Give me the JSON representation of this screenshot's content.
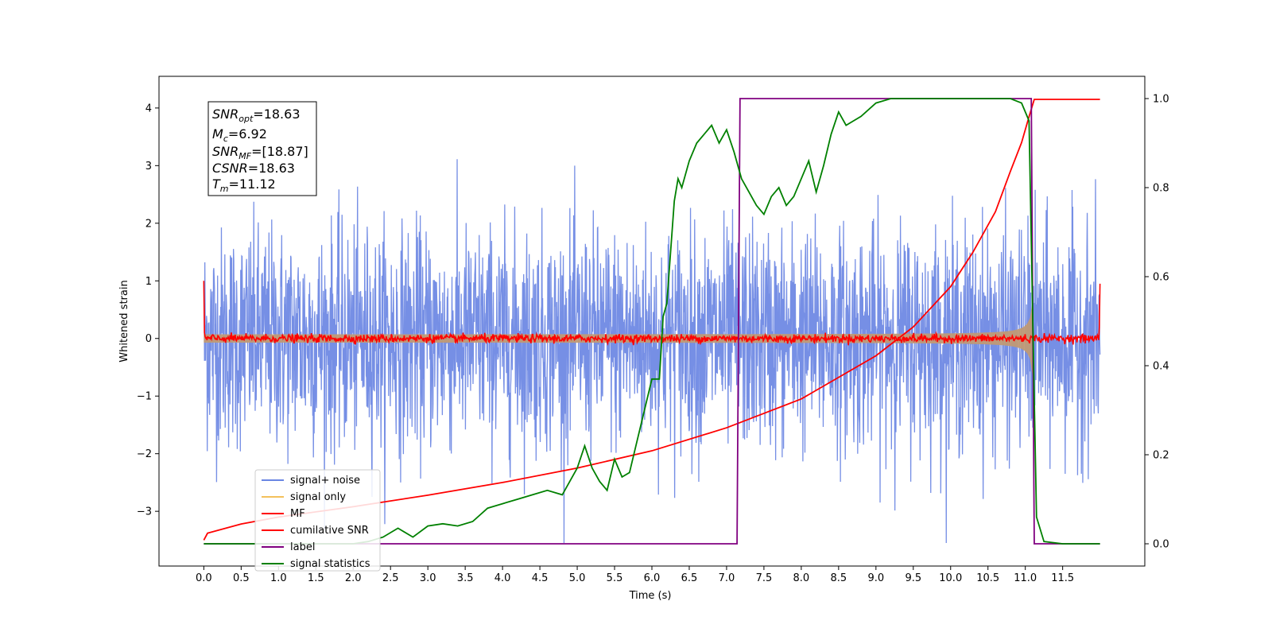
{
  "chart_data": {
    "type": "line",
    "xlabel": "Time (s)",
    "ylabel": "Whitened strain",
    "xlim": [
      -0.6,
      12.6
    ],
    "ylim": [
      -3.95,
      4.55
    ],
    "y2lim": [
      -0.05,
      1.05
    ],
    "x_ticks": [
      "0.0",
      "0.5",
      "1.0",
      "1.5",
      "2.0",
      "2.5",
      "3.0",
      "3.5",
      "4.0",
      "4.5",
      "5.0",
      "5.5",
      "6.0",
      "6.5",
      "7.0",
      "7.5",
      "8.0",
      "8.5",
      "9.0",
      "9.5",
      "10.0",
      "10.5",
      "11.0",
      "11.5"
    ],
    "y_ticks": [
      "−3",
      "−2",
      "−1",
      "0",
      "1",
      "2",
      "3",
      "4"
    ],
    "y2_ticks": [
      "0.0",
      "0.2",
      "0.4",
      "0.6",
      "0.8",
      "1.0"
    ],
    "legend_position": "lower left",
    "legend": [
      "signal+ noise",
      "signal only",
      "MF",
      "cumilative SNR",
      "label",
      "signal statistics"
    ],
    "colors": {
      "signal_noise": "#6a86e3",
      "signal_only": "#f4c15c",
      "signal_overlap": "#c09a75",
      "mf": "#ff0000",
      "cumulative_snr": "#ff0000",
      "label": "#800080",
      "signal_statistics": "#008000"
    },
    "annotation": {
      "snr_opt": {
        "name": "SNR",
        "sub": "opt",
        "value": "=18.63"
      },
      "mc": {
        "name": "M",
        "sub": "c",
        "value": "=6.92"
      },
      "snr_mf": {
        "name": "SNR",
        "sub": "MF",
        "value": "=[18.87]"
      },
      "csnr": {
        "name": "CSNR",
        "sub": "",
        "value": "=18.63"
      },
      "tm": {
        "name": "T",
        "sub": "m",
        "value": "=11.12"
      }
    },
    "series": [
      {
        "name": "label",
        "axis": "right",
        "points": [
          [
            0.0,
            0.0
          ],
          [
            7.14,
            0.0
          ],
          [
            7.18,
            1.0
          ],
          [
            11.08,
            1.0
          ],
          [
            11.12,
            0.0
          ],
          [
            12.0,
            0.0
          ]
        ]
      },
      {
        "name": "cumilative SNR",
        "axis": "left",
        "x": [
          0.0,
          0.05,
          0.5,
          1.0,
          2.0,
          3.0,
          4.0,
          5.0,
          6.0,
          7.0,
          8.0,
          9.0,
          9.5,
          10.0,
          10.3,
          10.6,
          10.8,
          10.95,
          11.05,
          11.12,
          11.15,
          12.0
        ],
        "values": [
          -3.5,
          -3.38,
          -3.22,
          -3.1,
          -2.92,
          -2.72,
          -2.5,
          -2.25,
          -1.95,
          -1.55,
          -1.05,
          -0.3,
          0.2,
          0.9,
          1.5,
          2.2,
          2.9,
          3.4,
          3.85,
          4.15,
          4.15,
          4.15
        ]
      },
      {
        "name": "signal statistics",
        "axis": "right",
        "x": [
          0.0,
          0.5,
          1.0,
          1.5,
          2.0,
          2.2,
          2.4,
          2.6,
          2.8,
          3.0,
          3.2,
          3.4,
          3.6,
          3.8,
          4.0,
          4.2,
          4.4,
          4.6,
          4.8,
          5.0,
          5.1,
          5.2,
          5.3,
          5.4,
          5.5,
          5.6,
          5.7,
          5.8,
          5.9,
          6.0,
          6.1,
          6.15,
          6.2,
          6.3,
          6.35,
          6.4,
          6.5,
          6.6,
          6.7,
          6.8,
          6.9,
          7.0,
          7.1,
          7.2,
          7.3,
          7.4,
          7.5,
          7.6,
          7.7,
          7.8,
          7.9,
          8.0,
          8.1,
          8.2,
          8.3,
          8.4,
          8.5,
          8.6,
          8.7,
          8.8,
          9.0,
          9.2,
          9.5,
          10.0,
          10.5,
          10.8,
          10.95,
          11.05,
          11.1,
          11.15,
          11.25,
          11.5,
          12.0
        ],
        "values": [
          0.0,
          0.0,
          0.0,
          0.0,
          0.0,
          0.005,
          0.015,
          0.035,
          0.015,
          0.04,
          0.045,
          0.04,
          0.05,
          0.08,
          0.09,
          0.1,
          0.11,
          0.12,
          0.11,
          0.17,
          0.22,
          0.17,
          0.14,
          0.12,
          0.19,
          0.15,
          0.16,
          0.23,
          0.3,
          0.37,
          0.37,
          0.51,
          0.54,
          0.77,
          0.82,
          0.8,
          0.86,
          0.9,
          0.92,
          0.94,
          0.9,
          0.93,
          0.88,
          0.82,
          0.79,
          0.76,
          0.74,
          0.78,
          0.8,
          0.76,
          0.78,
          0.82,
          0.86,
          0.79,
          0.85,
          0.92,
          0.97,
          0.94,
          0.95,
          0.96,
          0.99,
          1.0,
          1.0,
          1.0,
          1.0,
          1.0,
          0.99,
          0.95,
          0.5,
          0.06,
          0.005,
          0.0,
          0.0
        ]
      }
    ]
  }
}
